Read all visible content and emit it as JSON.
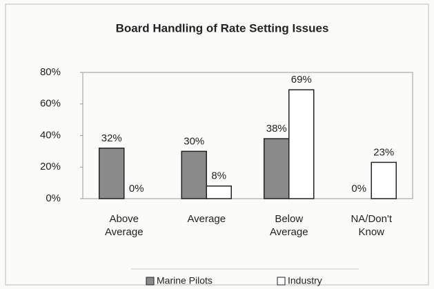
{
  "chart_data": {
    "type": "bar",
    "title": "Board Handling of Rate Setting Issues",
    "categories": [
      "Above Average",
      "Average",
      "Below Average",
      "NA/Don't Know"
    ],
    "series": [
      {
        "name": "Marine Pilots",
        "color": "#8a8a8a",
        "values": [
          32,
          30,
          38,
          0
        ],
        "value_labels": [
          "32%",
          "30%",
          "38%",
          "0%"
        ]
      },
      {
        "name": "Industry",
        "color": "#ffffff",
        "values": [
          0,
          8,
          69,
          23
        ],
        "value_labels": [
          "0%",
          "8%",
          "69%",
          "23%"
        ]
      }
    ],
    "ylim": [
      0,
      80
    ],
    "yticks": [
      {
        "value": 0,
        "label": "0%"
      },
      {
        "value": 20,
        "label": "20%"
      },
      {
        "value": 40,
        "label": "40%"
      },
      {
        "value": 60,
        "label": "60%"
      },
      {
        "value": 80,
        "label": "80%"
      }
    ],
    "grid": false,
    "legend": "bottom"
  }
}
